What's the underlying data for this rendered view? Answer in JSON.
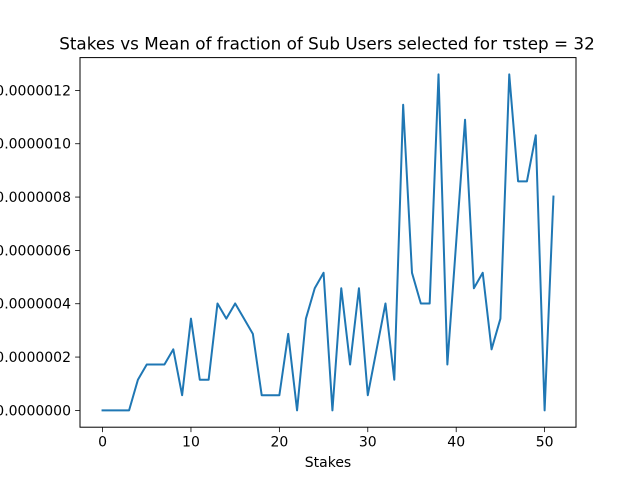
{
  "chart_data": {
    "type": "line",
    "title": "Stakes vs Mean of fraction of Sub Users selected for τstep = 32",
    "xlabel": "Stakes",
    "ylabel": "",
    "xlim": [
      -2.55,
      53.55
    ],
    "ylim": [
      -6.3e-08,
      1.323e-06
    ],
    "x_ticks": [
      0,
      10,
      20,
      30,
      40,
      50
    ],
    "x_tick_labels": [
      "0",
      "10",
      "20",
      "30",
      "40",
      "50"
    ],
    "y_ticks": [
      0,
      2e-07,
      4e-07,
      6e-07,
      8e-07,
      1e-06,
      1.2e-06
    ],
    "y_tick_labels": [
      "0.0000000",
      "0.0000002",
      "0.0000004",
      "0.0000006",
      "0.0000008",
      "0.0000010",
      "0.0000012"
    ],
    "grid": false,
    "line_color": "#1f77b4",
    "x": [
      0,
      1,
      2,
      3,
      4,
      5,
      6,
      7,
      8,
      9,
      10,
      11,
      12,
      13,
      14,
      15,
      16,
      17,
      18,
      19,
      20,
      21,
      22,
      23,
      24,
      25,
      26,
      27,
      28,
      29,
      30,
      31,
      32,
      33,
      34,
      35,
      36,
      37,
      38,
      39,
      40,
      41,
      42,
      43,
      44,
      45,
      46,
      47,
      48,
      49,
      50,
      51
    ],
    "values": [
      0,
      0,
      0,
      0,
      1.15e-07,
      1.72e-07,
      1.72e-07,
      1.72e-07,
      2.29e-07,
      5.7e-08,
      3.44e-07,
      1.15e-07,
      1.15e-07,
      4.01e-07,
      3.44e-07,
      4.01e-07,
      3.44e-07,
      2.87e-07,
      5.7e-08,
      5.7e-08,
      5.7e-08,
      2.87e-07,
      0,
      3.44e-07,
      4.58e-07,
      5.16e-07,
      0,
      4.58e-07,
      1.72e-07,
      4.58e-07,
      5.7e-08,
      2.29e-07,
      4.01e-07,
      1.15e-07,
      1.146e-06,
      5.16e-07,
      4.01e-07,
      4.01e-07,
      1.26e-06,
      1.72e-07,
      6.31e-07,
      1.09e-06,
      4.58e-07,
      5.16e-07,
      2.29e-07,
      3.44e-07,
      1.26e-06,
      8.59e-07,
      8.59e-07,
      1.032e-06,
      0,
      8.02e-07
    ]
  }
}
